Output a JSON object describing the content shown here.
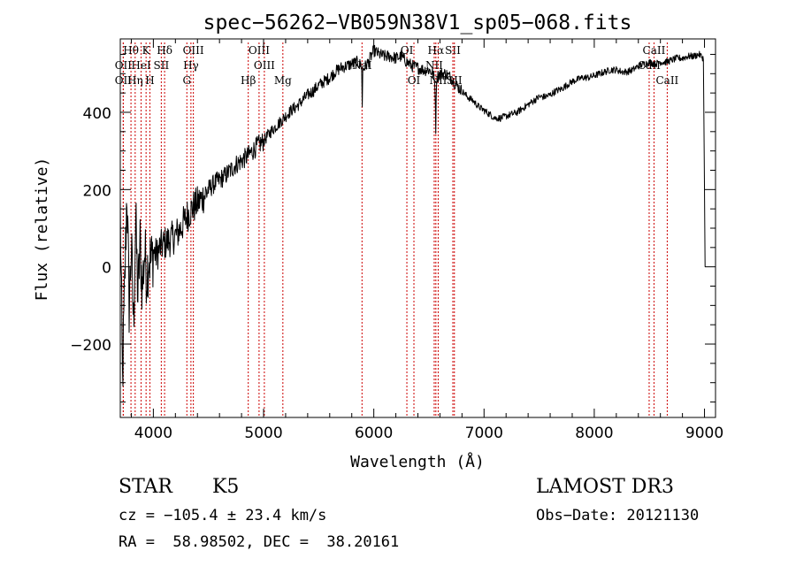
{
  "chart_data": {
    "type": "line",
    "title": "spec−56262−VB059N38V1_sp05−068.fits",
    "xlabel": "Wavelength (Å)",
    "ylabel": "Flux (relative)",
    "xlim": [
      3700,
      9100
    ],
    "ylim": [
      -390,
      590
    ],
    "x_ticks": [
      {
        "value": 4000,
        "label": "4000"
      },
      {
        "value": 5000,
        "label": "5000"
      },
      {
        "value": 6000,
        "label": "6000"
      },
      {
        "value": 7000,
        "label": "7000"
      },
      {
        "value": 8000,
        "label": "8000"
      },
      {
        "value": 9000,
        "label": "9000"
      }
    ],
    "y_ticks": [
      {
        "value": -200,
        "label": "−200"
      },
      {
        "value": 0,
        "label": "0"
      },
      {
        "value": 200,
        "label": "200"
      },
      {
        "value": 400,
        "label": "400"
      }
    ],
    "series": [
      {
        "name": "spectrum",
        "x": [
          3700,
          3720,
          3740,
          3760,
          3780,
          3800,
          3820,
          3840,
          3860,
          3880,
          3900,
          3920,
          3940,
          3960,
          3980,
          4000,
          4030,
          4060,
          4100,
          4150,
          4200,
          4250,
          4300,
          4350,
          4400,
          4450,
          4500,
          4550,
          4600,
          4650,
          4700,
          4750,
          4800,
          4850,
          4900,
          4950,
          5000,
          5050,
          5100,
          5150,
          5200,
          5250,
          5300,
          5350,
          5400,
          5450,
          5500,
          5550,
          5600,
          5650,
          5700,
          5750,
          5800,
          5850,
          5890,
          5895,
          5900,
          5950,
          6000,
          6050,
          6100,
          6150,
          6200,
          6250,
          6300,
          6350,
          6400,
          6450,
          6500,
          6540,
          6555,
          6562,
          6570,
          6600,
          6650,
          6700,
          6750,
          6800,
          6850,
          6900,
          6950,
          7000,
          7050,
          7100,
          7150,
          7200,
          7250,
          7300,
          7350,
          7400,
          7450,
          7500,
          7550,
          7600,
          7650,
          7700,
          7750,
          7800,
          7850,
          7900,
          7950,
          8000,
          8050,
          8100,
          8150,
          8200,
          8250,
          8300,
          8350,
          8400,
          8450,
          8500,
          8550,
          8600,
          8650,
          8700,
          8750,
          8800,
          8850,
          8900,
          8950,
          8990,
          9000,
          9005
        ],
        "values": [
          150,
          -300,
          -50,
          200,
          -100,
          50,
          -150,
          120,
          -80,
          60,
          -60,
          40,
          -20,
          30,
          10,
          40,
          30,
          50,
          60,
          70,
          80,
          100,
          130,
          150,
          165,
          180,
          200,
          215,
          225,
          235,
          250,
          265,
          275,
          285,
          300,
          315,
          325,
          345,
          360,
          375,
          390,
          405,
          415,
          430,
          445,
          455,
          470,
          480,
          490,
          505,
          515,
          520,
          525,
          530,
          520,
          410,
          510,
          530,
          560,
          550,
          545,
          545,
          540,
          545,
          530,
          520,
          515,
          510,
          510,
          500,
          470,
          360,
          490,
          500,
          500,
          490,
          470,
          455,
          440,
          430,
          415,
          405,
          395,
          385,
          385,
          390,
          395,
          400,
          410,
          420,
          430,
          440,
          440,
          445,
          455,
          460,
          470,
          480,
          485,
          490,
          490,
          495,
          500,
          505,
          510,
          510,
          505,
          505,
          510,
          520,
          525,
          530,
          525,
          530,
          530,
          535,
          540,
          540,
          545,
          545,
          550,
          540,
          210,
          0
        ]
      }
    ],
    "line_markers": [
      {
        "label": "OII",
        "wavelength": 3727,
        "row": 3
      },
      {
        "label": "Hθ",
        "wavelength": 3797,
        "row": 1
      },
      {
        "label": "OII",
        "wavelength": 3727,
        "row": 2
      },
      {
        "label": "HeI",
        "wavelength": 3889,
        "row": 2
      },
      {
        "label": "Hη",
        "wavelength": 3835,
        "row": 3
      },
      {
        "label": "K",
        "wavelength": 3934,
        "row": 1
      },
      {
        "label": "H",
        "wavelength": 3969,
        "row": 3
      },
      {
        "label": "SII",
        "wavelength": 4072,
        "row": 2
      },
      {
        "label": "Hδ",
        "wavelength": 4102,
        "row": 1
      },
      {
        "label": "OIII",
        "wavelength": 4363,
        "row": 1
      },
      {
        "label": "Hγ",
        "wavelength": 4341,
        "row": 2
      },
      {
        "label": "G",
        "wavelength": 4304,
        "row": 3
      },
      {
        "label": "Hβ",
        "wavelength": 4861,
        "row": 3
      },
      {
        "label": "OIII",
        "wavelength": 4959,
        "row": 1
      },
      {
        "label": "OIII",
        "wavelength": 5007,
        "row": 2
      },
      {
        "label": "Mg",
        "wavelength": 5175,
        "row": 3
      },
      {
        "label": "NaI",
        "wavelength": 5893,
        "row": 2
      },
      {
        "label": "OI",
        "wavelength": 6300,
        "row": 1
      },
      {
        "label": "OI",
        "wavelength": 6364,
        "row": 3
      },
      {
        "label": "NII",
        "wavelength": 6548,
        "row": 2
      },
      {
        "label": "Hα",
        "wavelength": 6563,
        "row": 1
      },
      {
        "label": "NII",
        "wavelength": 6584,
        "row": 3
      },
      {
        "label": "SII",
        "wavelength": 6717,
        "row": 1
      },
      {
        "label": "SII",
        "wavelength": 6731,
        "row": 3
      },
      {
        "label": "CaII",
        "wavelength": 8498,
        "row": 2
      },
      {
        "label": "CaII",
        "wavelength": 8542,
        "row": 1
      },
      {
        "label": "CaII",
        "wavelength": 8662,
        "row": 3
      }
    ]
  },
  "info": {
    "class_label": "STAR",
    "subclass_label": "K5",
    "survey": "LAMOST DR3",
    "velocity": "cz = −105.4 ± 23.4 km/s",
    "obs_date": "Obs−Date: 20121130",
    "coords": "RA =  58.98502, DEC =  38.20161"
  },
  "colors": {
    "spectrum": "#000000",
    "marker_line": "#cc0000",
    "axis": "#000000"
  }
}
